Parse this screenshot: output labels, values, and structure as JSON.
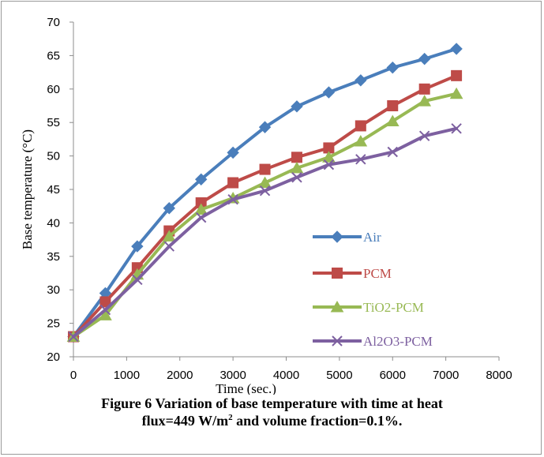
{
  "chart_data": {
    "type": "line",
    "xlabel": "Time (sec.)",
    "ylabel": "Base temperature (°C)",
    "xlim": [
      0,
      8000
    ],
    "ylim": [
      20,
      70
    ],
    "x_ticks": [
      0,
      1000,
      2000,
      3000,
      4000,
      5000,
      6000,
      7000,
      8000
    ],
    "y_ticks": [
      20,
      25,
      30,
      35,
      40,
      45,
      50,
      55,
      60,
      65,
      70
    ],
    "grid": false,
    "legend_position": "bottom-right",
    "x": [
      0,
      600,
      1200,
      1800,
      2400,
      3000,
      3600,
      4200,
      4800,
      5400,
      6000,
      6600,
      7200
    ],
    "series": [
      {
        "name": "Air",
        "color": "#4a7ebb",
        "marker": "diamond",
        "values": [
          23.0,
          29.5,
          36.5,
          42.2,
          46.5,
          50.5,
          54.3,
          57.4,
          59.5,
          61.3,
          63.2,
          64.5,
          66.0
        ]
      },
      {
        "name": "PCM",
        "color": "#be4b48",
        "marker": "square",
        "values": [
          23.0,
          28.2,
          33.3,
          38.8,
          43.0,
          46.0,
          48.0,
          49.8,
          51.2,
          54.5,
          57.5,
          60.0,
          62.0
        ]
      },
      {
        "name": "TiO2-PCM",
        "color": "#98b954",
        "marker": "triangle",
        "values": [
          23.0,
          26.2,
          32.3,
          38.0,
          42.0,
          43.7,
          46.0,
          48.2,
          49.8,
          52.2,
          55.2,
          58.2,
          59.3
        ]
      },
      {
        "name": "Al2O3-PCM",
        "color": "#7d60a0",
        "marker": "x",
        "values": [
          23.0,
          27.0,
          31.5,
          36.5,
          40.8,
          43.5,
          44.8,
          46.8,
          48.7,
          49.5,
          50.6,
          53.0,
          54.1
        ]
      }
    ]
  },
  "caption": {
    "line1": "Figure 6 Variation of base temperature with time at heat",
    "line2_prefix": "flux=449 W/m",
    "line2_sup": "2",
    "line2_suffix": " and volume fraction=0.1%."
  }
}
